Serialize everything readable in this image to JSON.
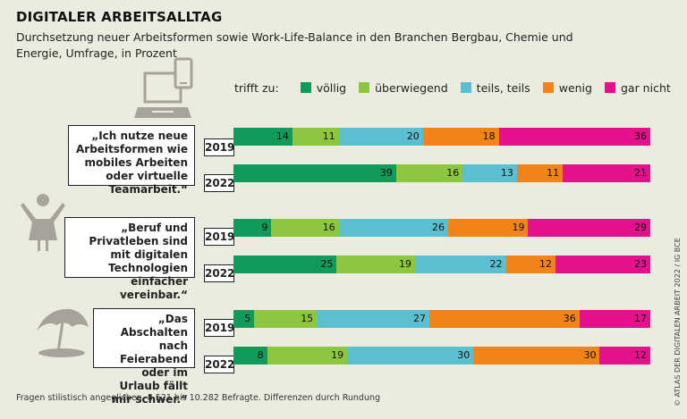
{
  "title": "DIGITALER ARBEITSALLTAG",
  "subtitle": "Durchsetzung neuer Arbeitsformen sowie Work-Life-Balance in den Branchen Bergbau, Chemie und Energie, Umfrage, in Prozent",
  "footer": "Fragen stilistisch angeglichen. 8.521 bis 10.282 Befragte. Differenzen durch Rundung",
  "credit": "© ATLAS DER DIGITALEN ARBEIT 2022 / IG BCE",
  "legend_prefix": "trifft zu:",
  "colors": {
    "völlig": "#129a5b",
    "überwiegend": "#8dc63f",
    "teils, teils": "#5bbfcf",
    "wenig": "#f08419",
    "gar nicht": "#e3128b"
  },
  "chart_data": {
    "type": "bar",
    "orientation": "horizontal",
    "stacked": true,
    "categories_legend": [
      "völlig",
      "überwiegend",
      "teils, teils",
      "wenig",
      "gar nicht"
    ],
    "groups": [
      {
        "label": "„Ich nutze neue Arbeitsformen wie mobiles Arbeiten oder virtuelle Teamarbeit.“",
        "icon": "laptop-phone-icon",
        "rows": [
          {
            "year": "2019",
            "values": [
              14,
              11,
              20,
              18,
              36
            ]
          },
          {
            "year": "2022",
            "values": [
              39,
              16,
              13,
              11,
              21
            ]
          }
        ]
      },
      {
        "label": "„Beruf und Privatleben sind mit digitalen Technologien einfacher vereinbar.“",
        "icon": "child-icon",
        "rows": [
          {
            "year": "2019",
            "values": [
              9,
              16,
              26,
              19,
              29
            ]
          },
          {
            "year": "2022",
            "values": [
              25,
              19,
              22,
              12,
              23
            ]
          }
        ]
      },
      {
        "label": "„Das Abschalten nach Feierabend oder im Urlaub fällt mir schwer.“",
        "icon": "beach-umbrella-icon",
        "rows": [
          {
            "year": "2019",
            "values": [
              5,
              15,
              27,
              36,
              17
            ]
          },
          {
            "year": "2022",
            "values": [
              8,
              19,
              30,
              30,
              12
            ]
          }
        ]
      }
    ]
  }
}
